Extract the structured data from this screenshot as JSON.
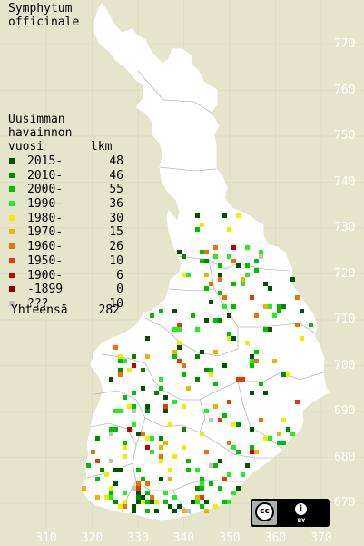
{
  "title_line1": "Symphytum",
  "title_line2": "officinale",
  "legend": {
    "heading_line1": "Uusimman",
    "heading_line2": "havainnon",
    "heading_line3": "vuosi",
    "count_header": "lkm",
    "items": [
      {
        "label": "2015-",
        "count": "48",
        "color": "#005400"
      },
      {
        "label": "2010-",
        "count": "46",
        "color": "#008a00"
      },
      {
        "label": "2000-",
        "count": "55",
        "color": "#00c000"
      },
      {
        "label": "1990-",
        "count": "36",
        "color": "#22ee22"
      },
      {
        "label": "1980-",
        "count": "30",
        "color": "#eeee00"
      },
      {
        "label": "1970-",
        "count": "15",
        "color": "#f0b400"
      },
      {
        "label": "1960-",
        "count": "26",
        "color": "#f07000"
      },
      {
        "label": "1950-",
        "count": "10",
        "color": "#e43c00"
      },
      {
        "label": "1900-",
        "count": "6",
        "color": "#c80000"
      },
      {
        "label": "-1899",
        "count": "0",
        "color": "#8a0000"
      },
      {
        "label": "???",
        "count": "10",
        "color": "#c0c0c0"
      }
    ],
    "total_label": "Yhteensä",
    "total_value": "282"
  },
  "y_ticks": [
    "770",
    "760",
    "750",
    "740",
    "730",
    "720",
    "710",
    "700",
    "690",
    "680",
    "670"
  ],
  "x_ticks": [
    "310",
    "320",
    "330",
    "340",
    "350",
    "360",
    "370"
  ],
  "license": {
    "cc_symbol": "cc",
    "by_symbol": "i",
    "by_text": "BY"
  },
  "colors": {
    "background": "#e5e5cc",
    "land": "#ffffff",
    "border": "#bbbbbb",
    "grid": "#cfcfcf"
  }
}
